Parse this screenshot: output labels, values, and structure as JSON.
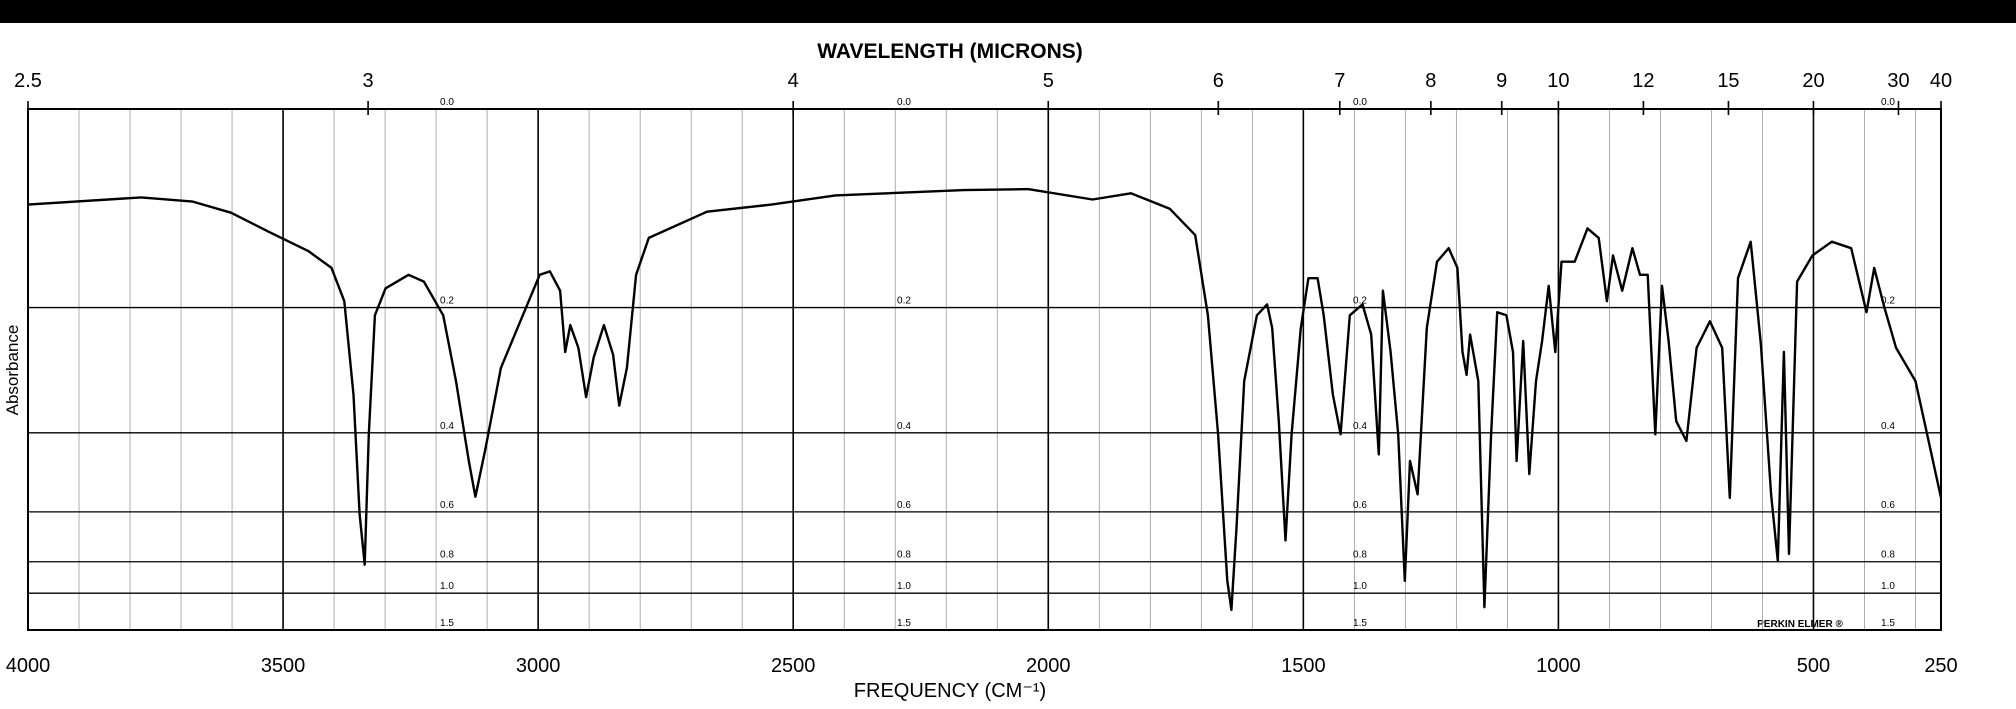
{
  "chart_data": {
    "type": "line",
    "x2label": "WAVELENGTH (MICRONS)",
    "xlabel": "FREQUENCY (CM⁻¹)",
    "ylabel": "Absorbance",
    "annotation": "PERKIN ELMER ®",
    "xlim": [
      4000,
      250
    ],
    "xticks": [
      4000,
      3500,
      3000,
      2500,
      2000,
      1500,
      1000,
      500,
      250
    ],
    "x2scale": "reciprocal",
    "x2ticks": [
      2.5,
      3,
      4,
      5,
      6,
      7,
      8,
      9,
      10,
      12,
      15,
      20,
      30,
      40
    ],
    "yscale": "absorbance",
    "ylim": [
      0,
      1.5
    ],
    "yticks": [
      {
        "value": 0,
        "label": "0.0"
      },
      0.2,
      0.4,
      0.6,
      0.8,
      {
        "value": 1,
        "label": "1.0"
      },
      1.5
    ],
    "grid": true,
    "minor_grid_step": 100,
    "color": "#000000",
    "x": [
      4000,
      3778,
      3677,
      3602,
      3526,
      3451,
      3405,
      3380,
      3362,
      3350,
      3340,
      3332,
      3320,
      3299,
      3254,
      3224,
      3186,
      3161,
      3136,
      3123,
      3103,
      3073,
      3035,
      2997,
      2977,
      2957,
      2947,
      2937,
      2921,
      2906,
      2891,
      2871,
      2853,
      2841,
      2826,
      2808,
      2783,
      2669,
      2543,
      2417,
      2165,
      2040,
      1913,
      1838,
      1762,
      1712,
      1687,
      1667,
      1649,
      1641,
      1631,
      1616,
      1591,
      1571,
      1561,
      1548,
      1535,
      1523,
      1505,
      1490,
      1472,
      1460,
      1442,
      1427,
      1409,
      1384,
      1367,
      1352,
      1344,
      1329,
      1314,
      1301,
      1291,
      1276,
      1258,
      1238,
      1215,
      1198,
      1188,
      1180,
      1173,
      1157,
      1145,
      1132,
      1120,
      1102,
      1089,
      1082,
      1069,
      1057,
      1044,
      1032,
      1019,
      1006,
      994,
      968,
      943,
      921,
      905,
      893,
      875,
      855,
      840,
      825,
      810,
      797,
      784,
      769,
      749,
      729,
      703,
      679,
      664,
      648,
      623,
      603,
      583,
      570,
      558,
      548,
      532,
      502,
      464,
      426,
      396,
      381,
      361,
      338,
      300,
      250
    ],
    "values": [
      0.085,
      0.078,
      0.082,
      0.093,
      0.113,
      0.133,
      0.152,
      0.192,
      0.329,
      0.607,
      0.815,
      0.403,
      0.21,
      0.176,
      0.16,
      0.168,
      0.21,
      0.306,
      0.461,
      0.554,
      0.432,
      0.285,
      0.218,
      0.16,
      0.156,
      0.179,
      0.261,
      0.223,
      0.255,
      0.333,
      0.269,
      0.223,
      0.265,
      0.348,
      0.285,
      0.16,
      0.119,
      0.092,
      0.085,
      0.076,
      0.071,
      0.07,
      0.08,
      0.074,
      0.089,
      0.116,
      0.21,
      0.403,
      0.91,
      1.161,
      0.654,
      0.306,
      0.21,
      0.196,
      0.227,
      0.377,
      0.703,
      0.403,
      0.227,
      0.164,
      0.164,
      0.21,
      0.329,
      0.403,
      0.21,
      0.196,
      0.236,
      0.446,
      0.179,
      0.261,
      0.403,
      0.91,
      0.461,
      0.547,
      0.227,
      0.145,
      0.13,
      0.152,
      0.261,
      0.296,
      0.236,
      0.306,
      1.131,
      0.403,
      0.206,
      0.21,
      0.261,
      0.461,
      0.245,
      0.493,
      0.306,
      0.245,
      0.173,
      0.261,
      0.145,
      0.145,
      0.109,
      0.119,
      0.192,
      0.138,
      0.179,
      0.13,
      0.16,
      0.16,
      0.403,
      0.173,
      0.245,
      0.377,
      0.417,
      0.255,
      0.218,
      0.255,
      0.557,
      0.164,
      0.123,
      0.25,
      0.547,
      0.796,
      0.261,
      0.762,
      0.168,
      0.138,
      0.123,
      0.13,
      0.206,
      0.152,
      0.2,
      0.255,
      0.306,
      0.557
    ]
  }
}
